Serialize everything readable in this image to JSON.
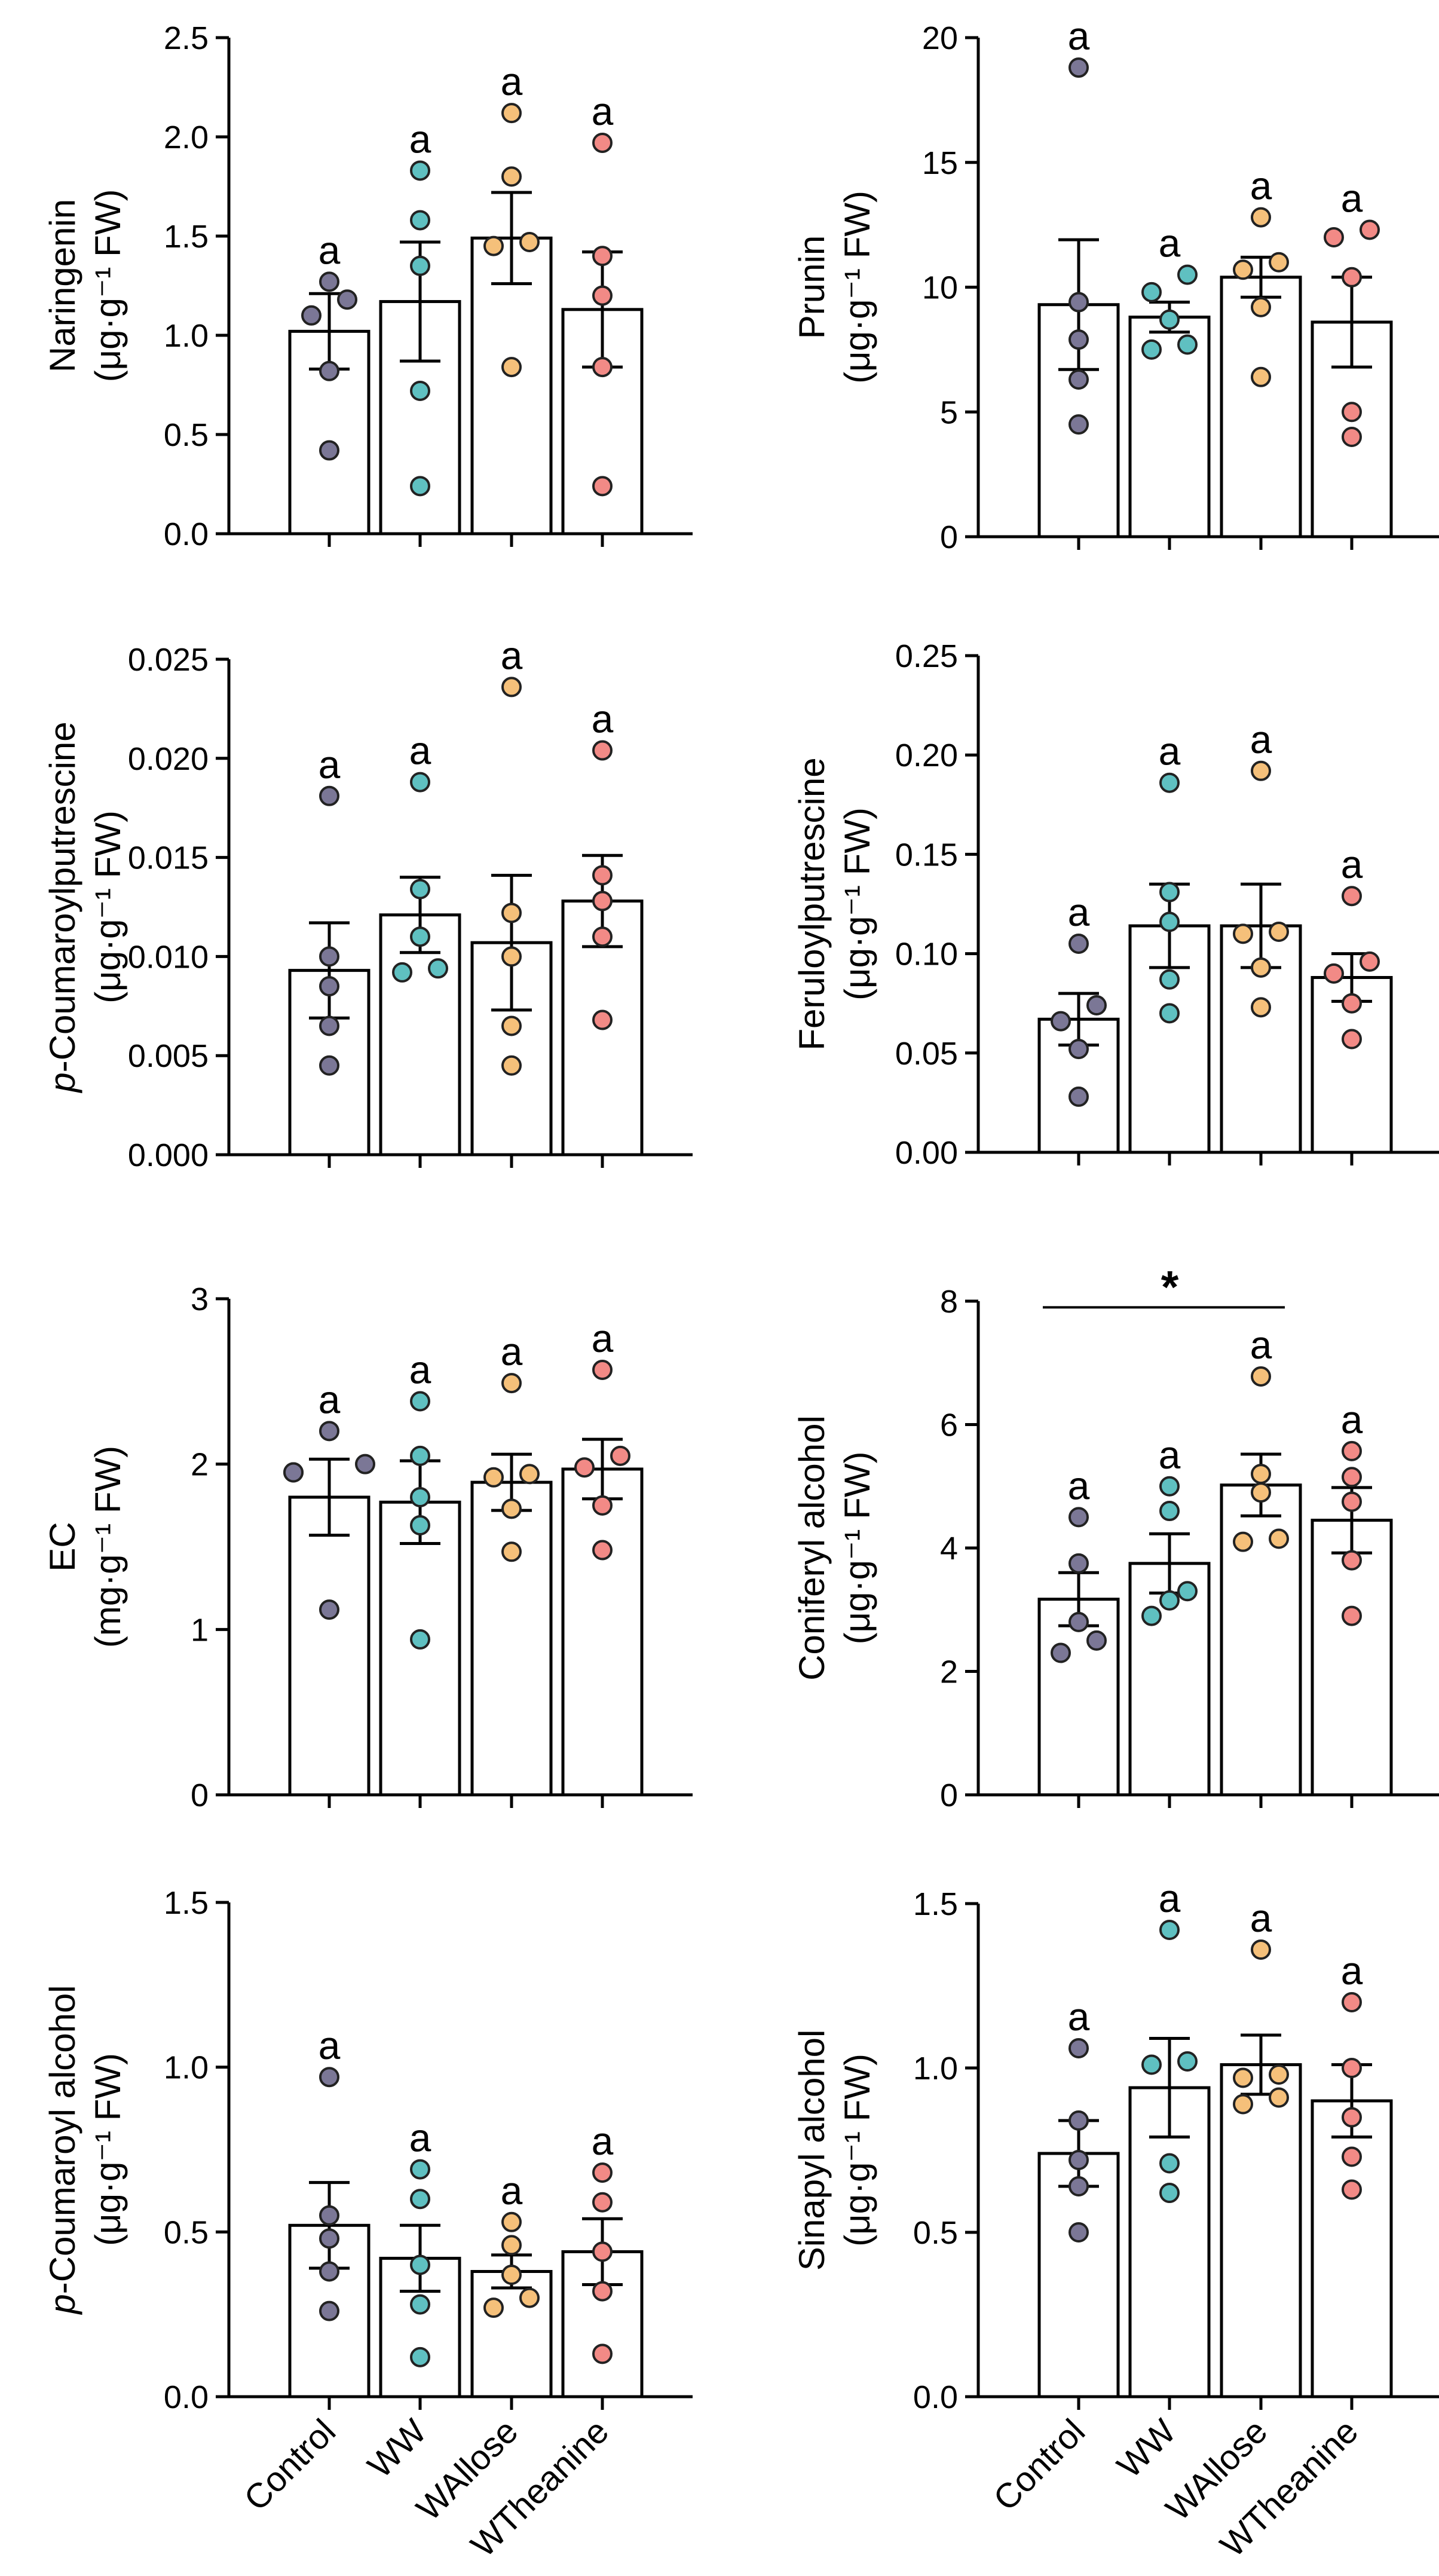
{
  "figure": {
    "categories": [
      "Control",
      "WW",
      "WAllose",
      "WTheanine"
    ],
    "series_colors": [
      "#7b7796",
      "#5fc0c1",
      "#f5c07a",
      "#f28a86"
    ],
    "bar_fill": "#ffffff",
    "stroke_color": "#000000"
  },
  "chart_data": [
    {
      "type": "bar",
      "panel": "top-left",
      "title": "",
      "ylabel_line1": "Naringenin",
      "ylabel_line2": "(μg·g⁻¹ FW)",
      "ylim": [
        0,
        2.5
      ],
      "yticks": [
        "0.0",
        "0.5",
        "1.0",
        "1.5",
        "2.0",
        "2.5"
      ],
      "categories": [
        "Control",
        "WW",
        "WAllose",
        "WTheanine"
      ],
      "means": [
        1.02,
        1.17,
        1.49,
        1.13
      ],
      "sem": [
        0.19,
        0.3,
        0.23,
        0.29
      ],
      "points": [
        [
          0.42,
          0.82,
          1.1,
          1.18,
          1.27
        ],
        [
          0.24,
          0.72,
          1.35,
          1.58,
          1.83
        ],
        [
          0.84,
          1.45,
          1.47,
          1.8,
          2.12
        ],
        [
          0.24,
          0.84,
          1.2,
          1.4,
          1.97
        ]
      ],
      "letters": [
        "a",
        "a",
        "a",
        "a"
      ],
      "x_tick_labels_visible": false
    },
    {
      "type": "bar",
      "panel": "top-right",
      "title": "",
      "ylabel_line1": "Prunin",
      "ylabel_line2": "(μg·g⁻¹ FW)",
      "ylim": [
        0,
        20
      ],
      "yticks": [
        "0",
        "5",
        "10",
        "15",
        "20"
      ],
      "categories": [
        "Control",
        "WW",
        "WAllose",
        "WTheanine"
      ],
      "means": [
        9.3,
        8.8,
        10.4,
        8.6
      ],
      "sem": [
        2.6,
        0.6,
        0.8,
        1.8
      ],
      "points": [
        [
          4.5,
          6.3,
          7.9,
          9.4,
          18.8
        ],
        [
          7.5,
          7.7,
          8.7,
          9.8,
          10.5
        ],
        [
          6.4,
          9.2,
          10.7,
          11.0,
          12.8
        ],
        [
          4.0,
          5.0,
          10.4,
          12.0,
          12.3
        ]
      ],
      "letters": [
        "a",
        "a",
        "a",
        "a"
      ],
      "x_tick_labels_visible": false
    },
    {
      "type": "bar",
      "panel": "row2-left",
      "title": "",
      "ylabel_italic": "p",
      "ylabel_line1": "-Coumaroylputrescine",
      "ylabel_line2": "(μg·g⁻¹ FW)",
      "ylim": [
        0,
        0.025
      ],
      "yticks": [
        "0.000",
        "0.005",
        "0.010",
        "0.015",
        "0.020",
        "0.025"
      ],
      "categories": [
        "Control",
        "WW",
        "WAllose",
        "WTheanine"
      ],
      "means": [
        0.0093,
        0.0121,
        0.0107,
        0.0128
      ],
      "sem": [
        0.0024,
        0.0019,
        0.0034,
        0.0023
      ],
      "points": [
        [
          0.0045,
          0.0065,
          0.0085,
          0.01,
          0.0181
        ],
        [
          0.0092,
          0.0094,
          0.011,
          0.0134,
          0.0188
        ],
        [
          0.0045,
          0.0065,
          0.01,
          0.0122,
          0.0236
        ],
        [
          0.0068,
          0.011,
          0.0128,
          0.0141,
          0.0204
        ]
      ],
      "letters": [
        "a",
        "a",
        "a",
        "a"
      ],
      "x_tick_labels_visible": false
    },
    {
      "type": "bar",
      "panel": "row2-right",
      "title": "",
      "ylabel_line1": "Feruloylputrescine",
      "ylabel_line2": "(μg·g⁻¹ FW)",
      "ylim": [
        0,
        0.25
      ],
      "yticks": [
        "0.00",
        "0.05",
        "0.10",
        "0.15",
        "0.20",
        "0.25"
      ],
      "categories": [
        "Control",
        "WW",
        "WAllose",
        "WTheanine"
      ],
      "means": [
        0.067,
        0.114,
        0.114,
        0.088
      ],
      "sem": [
        0.013,
        0.021,
        0.021,
        0.012
      ],
      "points": [
        [
          0.028,
          0.052,
          0.066,
          0.074,
          0.105
        ],
        [
          0.07,
          0.087,
          0.116,
          0.131,
          0.186
        ],
        [
          0.073,
          0.093,
          0.111,
          0.11,
          0.192
        ],
        [
          0.057,
          0.075,
          0.09,
          0.096,
          0.129
        ]
      ],
      "letters": [
        "a",
        "a",
        "a",
        "a"
      ],
      "x_tick_labels_visible": false
    },
    {
      "type": "bar",
      "panel": "row3-left",
      "title": "",
      "ylabel_line1": "EC",
      "ylabel_line2": "(mg·g⁻¹ FW)",
      "ylim": [
        0,
        3
      ],
      "yticks": [
        "0",
        "1",
        "2",
        "3"
      ],
      "categories": [
        "Control",
        "WW",
        "WAllose",
        "WTheanine"
      ],
      "means": [
        1.8,
        1.77,
        1.89,
        1.97
      ],
      "sem": [
        0.23,
        0.25,
        0.17,
        0.18
      ],
      "points": [
        [
          1.12,
          1.95,
          1.95,
          2.0,
          2.2
        ],
        [
          0.94,
          1.63,
          1.8,
          2.05,
          2.38
        ],
        [
          1.47,
          1.73,
          1.92,
          1.94,
          2.49
        ],
        [
          1.48,
          1.75,
          1.98,
          2.05,
          2.57
        ]
      ],
      "letters": [
        "a",
        "a",
        "a",
        "a"
      ],
      "x_tick_labels_visible": false
    },
    {
      "type": "bar",
      "panel": "row3-right",
      "title": "",
      "ylabel_line1": "Coniferyl alcohol",
      "ylabel_line2": "(μg·g⁻¹ FW)",
      "ylim": [
        0,
        8
      ],
      "yticks": [
        "0",
        "2",
        "4",
        "6",
        "8"
      ],
      "categories": [
        "Control",
        "WW",
        "WAllose",
        "WTheanine"
      ],
      "means": [
        3.17,
        3.75,
        5.02,
        4.45
      ],
      "sem": [
        0.43,
        0.48,
        0.5,
        0.53
      ],
      "points": [
        [
          2.3,
          2.5,
          2.8,
          3.75,
          4.5
        ],
        [
          2.9,
          3.15,
          3.3,
          4.6,
          5.0
        ],
        [
          4.1,
          4.15,
          4.9,
          5.2,
          6.78
        ],
        [
          2.9,
          3.8,
          4.75,
          5.15,
          5.57
        ]
      ],
      "letters": [
        "a",
        "a",
        "a",
        "a"
      ],
      "significance": {
        "from": "Control",
        "to": "WAllose",
        "label": "*",
        "y": 7.9
      },
      "x_tick_labels_visible": false
    },
    {
      "type": "bar",
      "panel": "bottom-left",
      "title": "",
      "ylabel_italic": "p",
      "ylabel_line1": "-Coumaroyl alcohol",
      "ylabel_line2": "(μg·g⁻¹ FW)",
      "ylim": [
        0,
        1.5
      ],
      "yticks": [
        "0.0",
        "0.5",
        "1.0",
        "1.5"
      ],
      "categories": [
        "Control",
        "WW",
        "WAllose",
        "WTheanine"
      ],
      "means": [
        0.52,
        0.42,
        0.38,
        0.44
      ],
      "sem": [
        0.13,
        0.1,
        0.05,
        0.1
      ],
      "points": [
        [
          0.26,
          0.38,
          0.48,
          0.55,
          0.97
        ],
        [
          0.12,
          0.28,
          0.4,
          0.6,
          0.69
        ],
        [
          0.27,
          0.3,
          0.37,
          0.46,
          0.53
        ],
        [
          0.13,
          0.32,
          0.44,
          0.59,
          0.68
        ]
      ],
      "letters": [
        "a",
        "a",
        "a",
        "a"
      ],
      "x_tick_labels_visible": true
    },
    {
      "type": "bar",
      "panel": "bottom-right",
      "title": "",
      "ylabel_line1": "Sinapyl alcohol",
      "ylabel_line2": "(μg·g⁻¹ FW)",
      "ylim": [
        0,
        1.5
      ],
      "yticks": [
        "0.0",
        "0.5",
        "1.0",
        "1.5"
      ],
      "categories": [
        "Control",
        "WW",
        "WAllose",
        "WTheanine"
      ],
      "means": [
        0.74,
        0.94,
        1.01,
        0.9
      ],
      "sem": [
        0.1,
        0.15,
        0.09,
        0.11
      ],
      "points": [
        [
          0.5,
          0.64,
          0.72,
          0.84,
          1.06
        ],
        [
          0.62,
          0.71,
          1.01,
          1.02,
          1.42
        ],
        [
          0.89,
          0.91,
          0.97,
          0.98,
          1.36
        ],
        [
          0.63,
          0.73,
          0.85,
          1.0,
          1.2
        ]
      ],
      "letters": [
        "a",
        "a",
        "a",
        "a"
      ],
      "x_tick_labels_visible": true
    }
  ]
}
